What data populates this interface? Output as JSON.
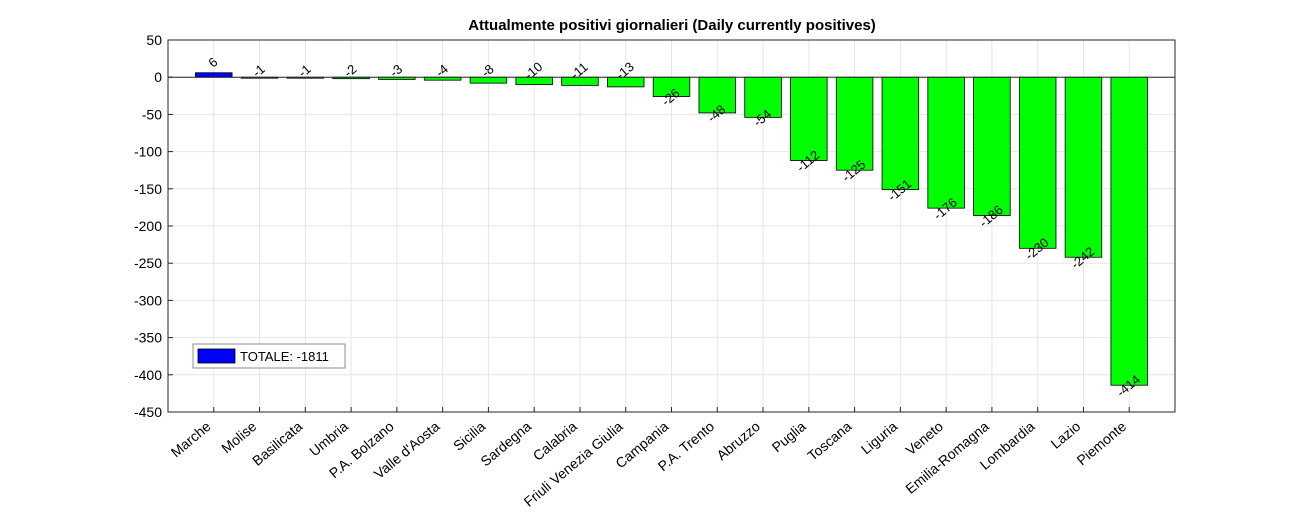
{
  "chart_data": {
    "type": "bar",
    "title": "Attualmente positivi giornalieri (Daily currently positives)",
    "xlabel": "",
    "ylabel": "",
    "categories": [
      "Marche",
      "Molise",
      "Basilicata",
      "Umbria",
      "P.A. Bolzano",
      "Valle d'Aosta",
      "Sicilia",
      "Sardegna",
      "Calabria",
      "Friuli Venezia Giulia",
      "Campania",
      "P.A. Trento",
      "Abruzzo",
      "Puglia",
      "Toscana",
      "Liguria",
      "Veneto",
      "Emilia-Romagna",
      "Lombardia",
      "Lazio",
      "Piemonte"
    ],
    "values": [
      6,
      -1,
      -1,
      -2,
      -3,
      -4,
      -8,
      -10,
      -11,
      -13,
      -26,
      -48,
      -54,
      -112,
      -125,
      -151,
      -176,
      -186,
      -230,
      -242,
      -414
    ],
    "data_labels": [
      "6",
      "-1",
      "-1",
      "-2",
      "-3",
      "-4",
      "-8",
      "-10",
      "-11",
      "-13",
      "-26",
      "-48",
      "-54",
      "-112",
      "-125",
      "-151",
      "-176",
      "-186",
      "-230",
      "-242",
      "-414"
    ],
    "ylim": [
      -450,
      50
    ],
    "yticks": [
      50,
      0,
      -50,
      -100,
      -150,
      -200,
      -250,
      -300,
      -350,
      -400,
      -450
    ],
    "ytick_labels": [
      "50",
      "0",
      "-50",
      "-100",
      "-150",
      "-200",
      "-250",
      "-300",
      "-350",
      "-400",
      "-450"
    ],
    "grid": true,
    "colors": {
      "positive": "#0000ff",
      "negative": "#00ff00",
      "edge": "#000000",
      "grid": "#e6e6e6",
      "axis": "#262626"
    },
    "legend": {
      "label": "TOTALE: -1811",
      "placement": "bottom-left",
      "swatch_color": "#0000ff"
    }
  }
}
